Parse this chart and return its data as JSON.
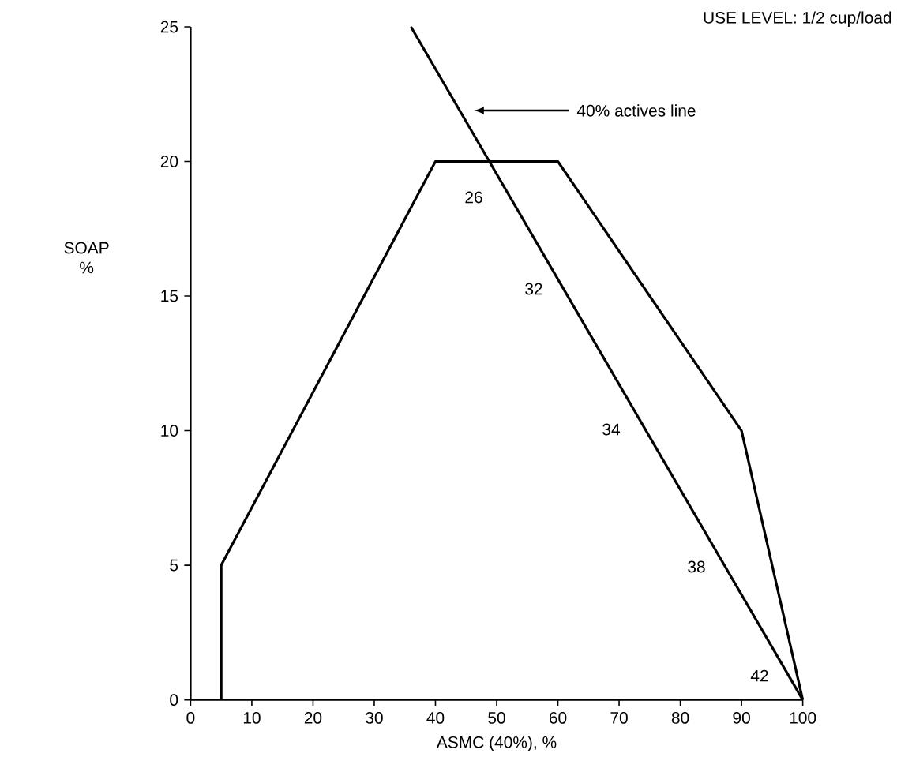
{
  "chart_data": {
    "type": "line",
    "xlabel": "ASMC (40%), %",
    "ylabel": "SOAP %",
    "x": [
      5,
      5,
      40,
      60,
      90,
      100
    ],
    "series": [
      {
        "color": "#000000",
        "values": [
          0,
          5,
          20,
          20,
          10,
          0
        ]
      },
      {
        "color": "#000000",
        "x": [
          36,
          100
        ],
        "values": [
          25,
          0
        ]
      }
    ],
    "xlim": [
      0,
      100
    ],
    "ylim": [
      0,
      25
    ],
    "xticks": [
      0,
      10,
      20,
      30,
      40,
      50,
      60,
      70,
      80,
      90,
      100
    ],
    "yticks": [
      0,
      5,
      10,
      15,
      20,
      25
    ],
    "marker": "none",
    "line_style": "solid",
    "annotations": [
      "USE LEVEL:  1/2 cup/load",
      "40% actives line",
      "26",
      "32",
      "34",
      "38",
      "42"
    ]
  }
}
